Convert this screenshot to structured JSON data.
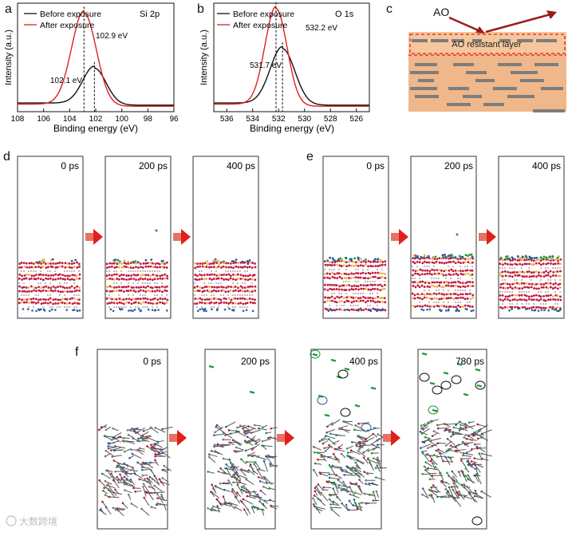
{
  "panel_labels": {
    "a": "a",
    "b": "b",
    "c": "c",
    "d": "d",
    "e": "e",
    "f": "f"
  },
  "chart_data": [
    {
      "id": "a",
      "type": "line",
      "legend": [
        "Before exposure",
        "After exposure"
      ],
      "tag": "Si 2p",
      "xlabel": "Binding energy (eV)",
      "ylabel": "Intensity (a.u.)",
      "xlim": [
        108,
        96
      ],
      "xticks": [
        "96",
        "98",
        "100",
        "102",
        "104",
        "106",
        "108"
      ],
      "series": [
        {
          "name": "Before exposure",
          "color": "#111111",
          "center": 102.1,
          "width": 0.9,
          "amplitude": 0.34,
          "baseline": 0.06
        },
        {
          "name": "After exposure",
          "color": "#e0201b",
          "center": 102.9,
          "width": 0.95,
          "amplitude": 0.86,
          "baseline": 0.05
        }
      ],
      "annotations": [
        {
          "x": 102.1,
          "label": "102.1 eV"
        },
        {
          "x": 102.9,
          "label": "102.9 eV"
        }
      ]
    },
    {
      "id": "b",
      "type": "line",
      "legend": [
        "Before exposure",
        "After exposure"
      ],
      "tag": "O 1s",
      "xlabel": "Binding energy (eV)",
      "ylabel": "Intensity (a.u.)",
      "xlim": [
        537,
        525
      ],
      "xticks": [
        "526",
        "528",
        "530",
        "532",
        "534",
        "536"
      ],
      "series": [
        {
          "name": "Before exposure",
          "color": "#111111",
          "center": 531.7,
          "width": 0.95,
          "amplitude": 0.52,
          "baseline": 0.06
        },
        {
          "name": "After exposure",
          "color": "#e0201b",
          "center": 532.2,
          "width": 0.85,
          "amplitude": 0.9,
          "baseline": 0.05
        }
      ],
      "annotations": [
        {
          "x": 531.7,
          "label": "531.7 eV"
        },
        {
          "x": 532.2,
          "label": "532.2 eV"
        }
      ]
    }
  ],
  "schematic_c": {
    "ao_label": "AO",
    "layer_label": "AO resistant layer",
    "colors": {
      "bulk": "#f0b78a",
      "top": "#f6c79c",
      "flake": "#7d7d7d",
      "arrow": "#9b1b1b",
      "dash": "#e0201b"
    }
  },
  "md_d": {
    "times": [
      "0 ps",
      "200 ps",
      "400 ps"
    ]
  },
  "md_e": {
    "times": [
      "0 ps",
      "200 ps",
      "400 ps"
    ]
  },
  "md_f": {
    "times": [
      "0 ps",
      "200 ps",
      "400 ps",
      "780 ps"
    ]
  },
  "watermark": "大数跨境",
  "colors": {
    "red_arrow": "#e0201b",
    "atom_red": "#c0183c",
    "atom_blue": "#2e5c9c",
    "atom_green": "#1f9a3a"
  }
}
